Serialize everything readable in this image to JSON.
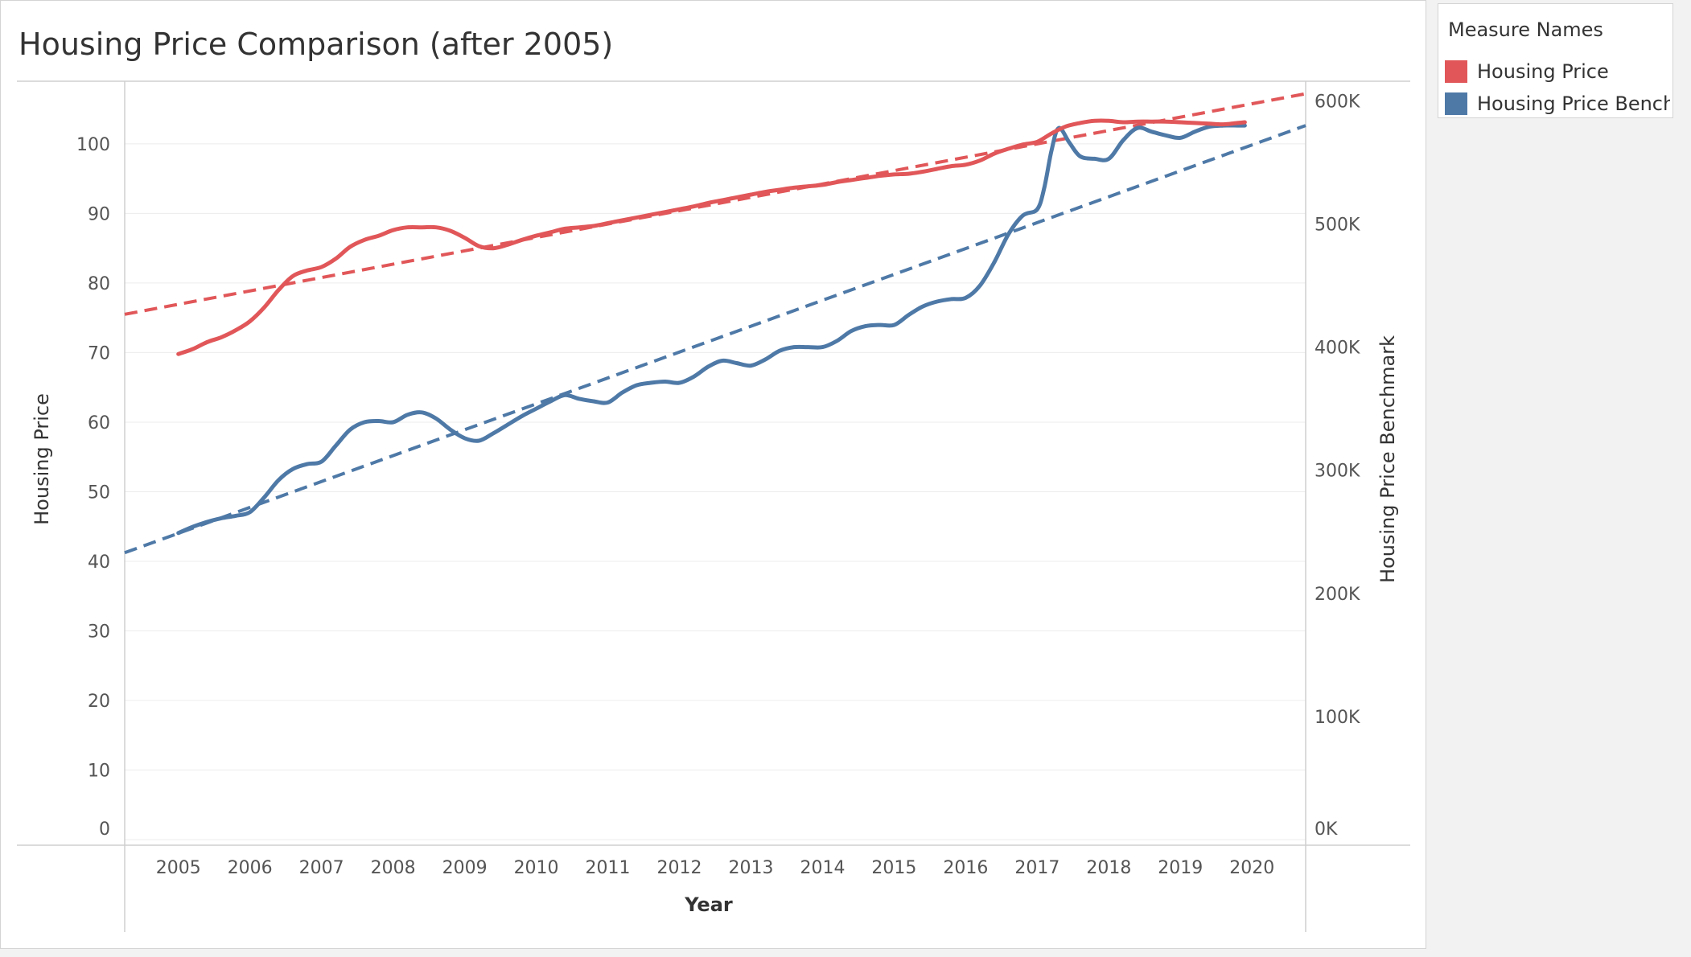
{
  "chart_data": {
    "type": "line",
    "title": "Housing Price Comparison (after 2005)",
    "xlabel": "Year",
    "ylabel_left": "Housing Price",
    "ylabel_right": "Housing Price Benchmark",
    "x_ticks": [
      "2005",
      "2006",
      "2007",
      "2008",
      "2009",
      "2010",
      "2011",
      "2012",
      "2013",
      "2014",
      "2015",
      "2016",
      "2017",
      "2018",
      "2019",
      "2020"
    ],
    "x_range": [
      2004.25,
      2020.75
    ],
    "y_left_ticks": [
      "0",
      "10",
      "20",
      "30",
      "40",
      "50",
      "60",
      "70",
      "80",
      "90",
      "100"
    ],
    "y_left_range": [
      -0.8,
      109
    ],
    "y_right_ticks": [
      "0K",
      "100K",
      "200K",
      "300K",
      "400K",
      "500K",
      "600K"
    ],
    "y_right_range": [
      -4600,
      616000
    ],
    "grid": "horizontal",
    "legend": {
      "title": "Measure Names",
      "position": "right",
      "entries": [
        {
          "label": "Housing Price",
          "color": "#e15759"
        },
        {
          "label": "Housing Price Bench..",
          "color": "#4e79a7"
        }
      ]
    },
    "series": [
      {
        "name": "Housing Price",
        "axis": "left",
        "color": "#e15759",
        "x": [
          2005.0,
          2005.2,
          2005.4,
          2005.6,
          2005.8,
          2006.0,
          2006.2,
          2006.4,
          2006.6,
          2006.8,
          2007.0,
          2007.2,
          2007.4,
          2007.6,
          2007.8,
          2008.0,
          2008.2,
          2008.4,
          2008.6,
          2008.8,
          2009.0,
          2009.2,
          2009.4,
          2009.6,
          2009.8,
          2010.0,
          2010.2,
          2010.4,
          2010.6,
          2010.8,
          2011.0,
          2011.2,
          2011.4,
          2011.6,
          2011.8,
          2012.0,
          2012.2,
          2012.4,
          2012.6,
          2012.8,
          2013.0,
          2013.2,
          2013.4,
          2013.6,
          2013.8,
          2014.0,
          2014.2,
          2014.4,
          2014.6,
          2014.8,
          2015.0,
          2015.2,
          2015.4,
          2015.6,
          2015.8,
          2016.0,
          2016.2,
          2016.4,
          2016.6,
          2016.8,
          2017.0,
          2017.2,
          2017.4,
          2017.6,
          2017.8,
          2018.0,
          2018.2,
          2018.4,
          2018.6,
          2018.8,
          2019.0,
          2019.2,
          2019.4,
          2019.6,
          2019.8,
          2019.9
        ],
        "values": [
          69.8,
          70.5,
          71.5,
          72.2,
          73.2,
          74.5,
          76.5,
          79.0,
          81.0,
          81.8,
          82.3,
          83.5,
          85.2,
          86.2,
          86.8,
          87.6,
          88.0,
          88.0,
          88.0,
          87.5,
          86.5,
          85.3,
          85.0,
          85.5,
          86.2,
          86.8,
          87.3,
          87.8,
          88.0,
          88.2,
          88.6,
          89.0,
          89.4,
          89.8,
          90.2,
          90.6,
          91.0,
          91.5,
          91.9,
          92.3,
          92.7,
          93.1,
          93.4,
          93.7,
          93.9,
          94.1,
          94.5,
          94.8,
          95.1,
          95.4,
          95.6,
          95.7,
          96.0,
          96.4,
          96.8,
          97.0,
          97.6,
          98.6,
          99.3,
          99.9,
          100.3,
          101.5,
          102.5,
          103.0,
          103.3,
          103.3,
          103.1,
          103.2,
          103.2,
          103.2,
          103.1,
          103.0,
          102.9,
          102.8,
          103.0,
          103.1
        ]
      },
      {
        "name": "Housing Price Benchmark",
        "axis": "right",
        "color": "#4e79a7",
        "x": [
          2005.0,
          2005.2,
          2005.4,
          2005.6,
          2005.8,
          2006.0,
          2006.2,
          2006.4,
          2006.6,
          2006.8,
          2007.0,
          2007.2,
          2007.4,
          2007.6,
          2007.8,
          2008.0,
          2008.2,
          2008.4,
          2008.6,
          2008.8,
          2009.0,
          2009.2,
          2009.4,
          2009.6,
          2009.8,
          2010.0,
          2010.2,
          2010.4,
          2010.6,
          2010.8,
          2011.0,
          2011.2,
          2011.4,
          2011.6,
          2011.8,
          2012.0,
          2012.2,
          2012.4,
          2012.6,
          2012.8,
          2013.0,
          2013.2,
          2013.4,
          2013.6,
          2013.8,
          2014.0,
          2014.2,
          2014.4,
          2014.6,
          2014.8,
          2015.0,
          2015.2,
          2015.4,
          2015.6,
          2015.8,
          2016.0,
          2016.2,
          2016.4,
          2016.6,
          2016.8,
          2017.0,
          2017.1,
          2017.2,
          2017.3,
          2017.45,
          2017.6,
          2017.8,
          2018.0,
          2018.2,
          2018.4,
          2018.6,
          2018.8,
          2019.0,
          2019.2,
          2019.4,
          2019.6,
          2019.8,
          2019.9
        ],
        "values": [
          249000,
          254000,
          258000,
          261000,
          263000,
          266000,
          278000,
          292000,
          301000,
          305000,
          307000,
          320000,
          333000,
          339000,
          340000,
          339000,
          345000,
          347000,
          342000,
          333000,
          326000,
          324000,
          330000,
          337000,
          344000,
          350000,
          356000,
          361000,
          358000,
          356000,
          355000,
          363000,
          369000,
          371000,
          372000,
          371000,
          376000,
          384000,
          389000,
          387000,
          385000,
          390000,
          397000,
          400000,
          400000,
          400000,
          405000,
          413000,
          417000,
          418000,
          418000,
          426000,
          433000,
          437000,
          439000,
          440000,
          450000,
          469000,
          492000,
          507000,
          512000,
          530000,
          560000,
          578000,
          566000,
          555000,
          553000,
          553000,
          568000,
          578000,
          575000,
          572000,
          570000,
          575000,
          579000,
          580000,
          580000,
          580000
        ]
      }
    ],
    "trend_lines": [
      {
        "series": "Housing Price",
        "axis": "left",
        "x": [
          2004.25,
          2020.75
        ],
        "values": [
          75.5,
          107.2
        ],
        "style": "dashed"
      },
      {
        "series": "Housing Price Benchmark",
        "axis": "right",
        "x": [
          2004.25,
          2020.75
        ],
        "values": [
          233000,
          580000
        ],
        "style": "dashed"
      }
    ]
  }
}
